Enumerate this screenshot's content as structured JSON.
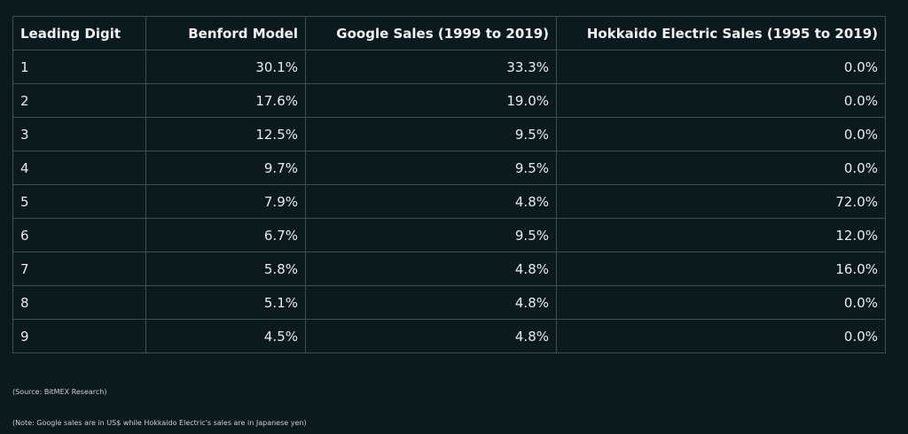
{
  "chart_data": {
    "type": "table",
    "columns": [
      "Leading Digit",
      "Benford Model",
      "Google Sales (1999 to 2019)",
      "Hokkaido Electric Sales (1995 to 2019)"
    ],
    "rows": [
      [
        "1",
        "30.1%",
        "33.3%",
        "0.0%"
      ],
      [
        "2",
        "17.6%",
        "19.0%",
        "0.0%"
      ],
      [
        "3",
        "12.5%",
        "9.5%",
        "0.0%"
      ],
      [
        "4",
        "9.7%",
        "9.5%",
        "0.0%"
      ],
      [
        "5",
        "7.9%",
        "4.8%",
        "72.0%"
      ],
      [
        "6",
        "6.7%",
        "9.5%",
        "12.0%"
      ],
      [
        "7",
        "5.8%",
        "4.8%",
        "16.0%"
      ],
      [
        "8",
        "5.1%",
        "4.8%",
        "0.0%"
      ],
      [
        "9",
        "4.5%",
        "4.8%",
        "0.0%"
      ]
    ]
  },
  "notes": {
    "source": "(Source: BitMEX Research)",
    "note": "(Note: Google sales are in US$ while Hokkaido Electric's sales are in Japanese yen)"
  },
  "colors": {
    "background": "#0b1a1e",
    "border": "#3c5256",
    "text": "#e8ecec"
  }
}
